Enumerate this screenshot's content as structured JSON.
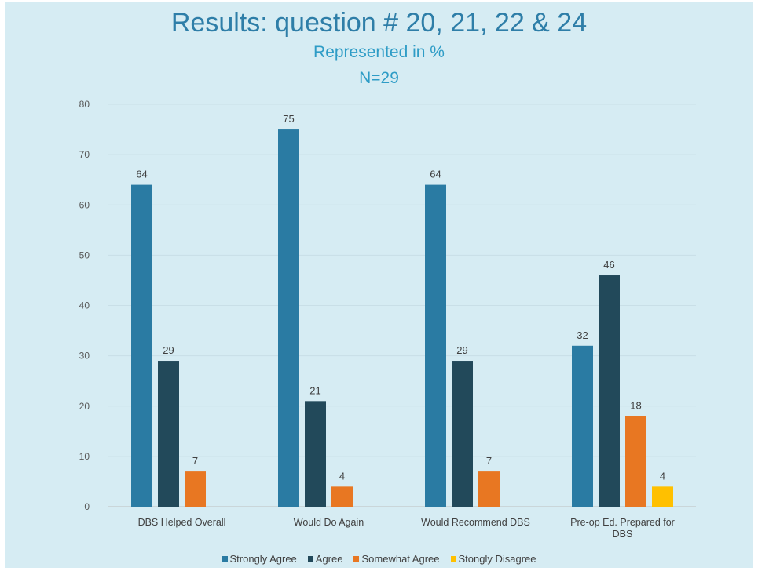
{
  "chart_data": {
    "type": "bar",
    "title": "Results: question # 20, 21, 22 & 24",
    "subtitle": "Represented in %",
    "subtitle2": "N=29",
    "categories": [
      [
        "DBS Helped Overall"
      ],
      [
        "Would Do Again"
      ],
      [
        "Would Recommend DBS"
      ],
      [
        "Pre-op Ed. Prepared for",
        "DBS"
      ]
    ],
    "series": [
      {
        "name": "Strongly Agree",
        "color": "#2a7ba3",
        "values": [
          64,
          75,
          64,
          32
        ]
      },
      {
        "name": "Agree",
        "color": "#22495a",
        "values": [
          29,
          21,
          29,
          46
        ]
      },
      {
        "name": "Somewhat Agree",
        "color": "#e87722",
        "values": [
          7,
          4,
          7,
          18
        ]
      },
      {
        "name": "Stongly Disagree",
        "color": "#ffc000",
        "values": [
          null,
          null,
          null,
          4
        ]
      }
    ],
    "ylim": [
      0,
      80
    ],
    "yticks": [
      0,
      10,
      20,
      30,
      40,
      50,
      60,
      70,
      80
    ],
    "grid": true,
    "legend": "bottom"
  }
}
